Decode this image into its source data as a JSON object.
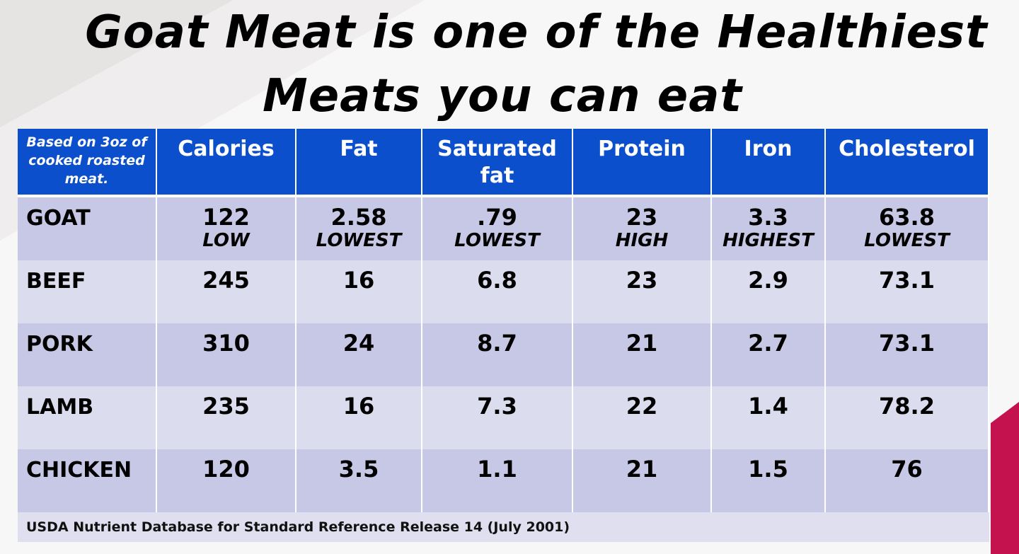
{
  "title": {
    "line1": "Goat Meat is one of the Healthiest",
    "line2": "Meats you can eat"
  },
  "table": {
    "basis_label": "Based on 3oz of cooked roasted meat.",
    "columns": [
      "Calories",
      "Fat",
      "Saturated fat",
      "Protein",
      "Iron",
      "Cholesterol"
    ],
    "rows": [
      {
        "name": "GOAT",
        "cells": [
          {
            "value": "122",
            "note": "LOW"
          },
          {
            "value": "2.58",
            "note": "LOWEST"
          },
          {
            "value": ".79",
            "note": "LOWEST"
          },
          {
            "value": "23",
            "note": "HIGH"
          },
          {
            "value": "3.3",
            "note": "HIGHEST"
          },
          {
            "value": "63.8",
            "note": "LOWEST"
          }
        ]
      },
      {
        "name": "BEEF",
        "cells": [
          {
            "value": "245"
          },
          {
            "value": "16"
          },
          {
            "value": "6.8"
          },
          {
            "value": "23"
          },
          {
            "value": "2.9"
          },
          {
            "value": "73.1"
          }
        ]
      },
      {
        "name": "PORK",
        "cells": [
          {
            "value": "310"
          },
          {
            "value": "24"
          },
          {
            "value": "8.7"
          },
          {
            "value": "21"
          },
          {
            "value": "2.7"
          },
          {
            "value": "73.1"
          }
        ]
      },
      {
        "name": "LAMB",
        "cells": [
          {
            "value": "235"
          },
          {
            "value": "16"
          },
          {
            "value": "7.3"
          },
          {
            "value": "22"
          },
          {
            "value": "1.4"
          },
          {
            "value": "78.2"
          }
        ]
      },
      {
        "name": "CHICKEN",
        "cells": [
          {
            "value": "120"
          },
          {
            "value": "3.5"
          },
          {
            "value": "1.1"
          },
          {
            "value": "21"
          },
          {
            "value": "1.5"
          },
          {
            "value": "76"
          }
        ]
      }
    ]
  },
  "footer": {
    "source": "USDA Nutrient Database for Standard Reference Release 14 (July 2001)"
  },
  "colors": {
    "header_blue": "#0b4fcc",
    "row_dark": "#c7c8e6",
    "row_light": "#dcdcef",
    "accent_magenta": "#c4124e"
  }
}
